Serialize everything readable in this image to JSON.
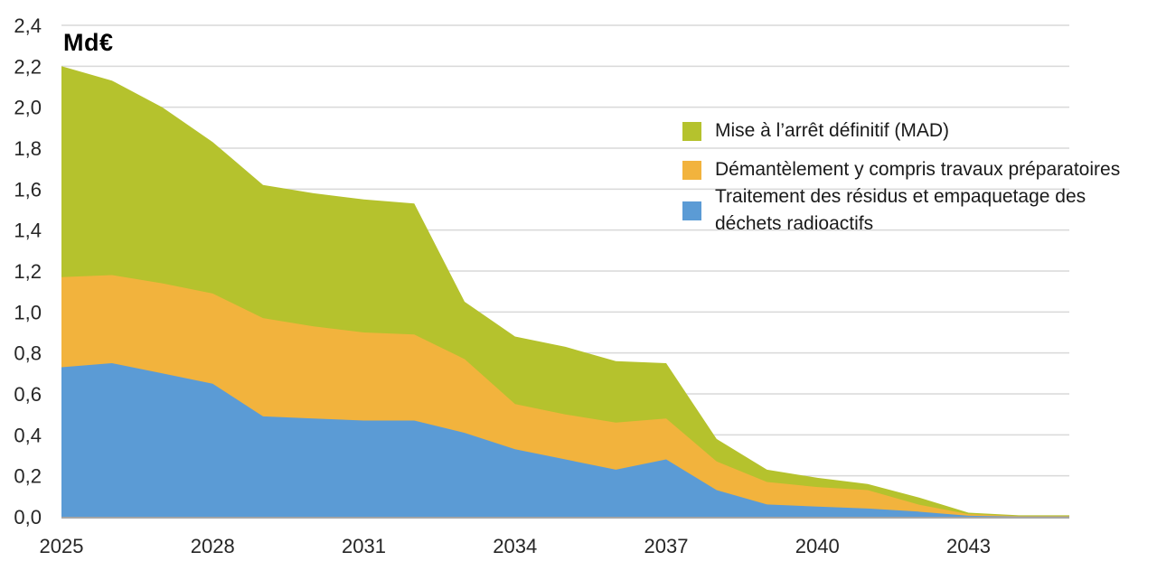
{
  "chart_data": {
    "type": "area",
    "stacked": true,
    "title": "Md€",
    "xlabel": "",
    "ylabel": "Md€",
    "ylim": [
      0,
      2.4
    ],
    "grid": true,
    "legend_position": "top-right",
    "x": [
      2025,
      2026,
      2027,
      2028,
      2029,
      2030,
      2031,
      2032,
      2033,
      2034,
      2035,
      2036,
      2037,
      2038,
      2039,
      2040,
      2041,
      2042,
      2043,
      2044,
      2045
    ],
    "series": [
      {
        "name": "Traitement des résidus et empaquetage des déchets radioactifs",
        "color": "#5b9bd5",
        "values": [
          0.73,
          0.75,
          0.7,
          0.65,
          0.49,
          0.48,
          0.47,
          0.47,
          0.41,
          0.33,
          0.28,
          0.23,
          0.28,
          0.13,
          0.06,
          0.05,
          0.04,
          0.025,
          0.005,
          0.001,
          0.001
        ]
      },
      {
        "name": "Démantèlement y compris travaux préparatoires",
        "color": "#f2b33d",
        "values": [
          0.44,
          0.43,
          0.44,
          0.44,
          0.48,
          0.45,
          0.43,
          0.42,
          0.36,
          0.22,
          0.22,
          0.23,
          0.2,
          0.14,
          0.11,
          0.095,
          0.09,
          0.035,
          0.008,
          0.002,
          0.002
        ]
      },
      {
        "name": "Mise à l’arrêt définitif (MAD)",
        "color": "#b5c22d",
        "values": [
          1.03,
          0.95,
          0.86,
          0.74,
          0.65,
          0.65,
          0.65,
          0.64,
          0.28,
          0.33,
          0.33,
          0.3,
          0.27,
          0.11,
          0.06,
          0.045,
          0.03,
          0.035,
          0.007,
          0.004,
          0.004
        ]
      }
    ],
    "y_ticks": [
      0,
      0.2,
      0.4,
      0.6,
      0.8,
      1.0,
      1.2,
      1.4,
      1.6,
      1.8,
      2.0,
      2.2,
      2.4
    ],
    "y_tick_labels": [
      "0,0",
      "0,2",
      "0,4",
      "0,6",
      "0,8",
      "1,0",
      "1,2",
      "1,4",
      "1,6",
      "1,8",
      "2,0",
      "2,2",
      "2,4"
    ],
    "x_ticks": [
      2025,
      2028,
      2031,
      2034,
      2037,
      2040,
      2043
    ],
    "x_tick_labels": [
      "2025",
      "2028",
      "2031",
      "2034",
      "2037",
      "2040",
      "2043"
    ]
  },
  "legend": {
    "items": [
      {
        "label": "Mise à l’arrêt définitif (MAD)",
        "color": "#b5c22d"
      },
      {
        "label": "Démantèlement y compris travaux préparatoires",
        "color": "#f2b33d"
      },
      {
        "label": "Traitement des résidus et empaquetage des\ndéchets radioactifs",
        "color": "#5b9bd5"
      }
    ]
  },
  "colors": {
    "grid": "#d9d9d9",
    "axis": "#a6a6a6",
    "tick_text": "#262626",
    "background": "#ffffff"
  }
}
